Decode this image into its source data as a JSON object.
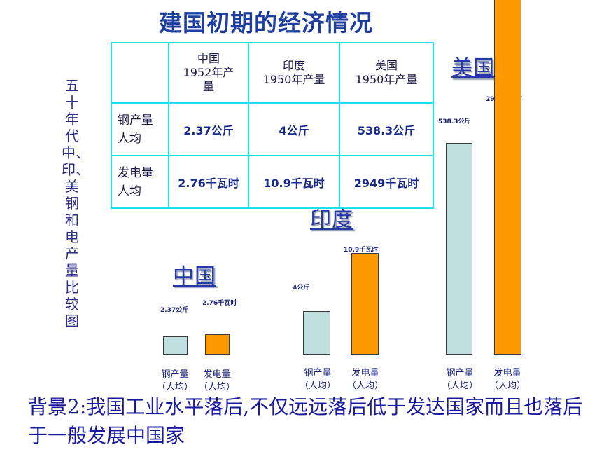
{
  "title": "建国初期的经济情况",
  "vertical_title": "五十年代中、印、美钢和电产量比较图",
  "table": {
    "headers": [
      "",
      "中国\n1952年产\n量",
      "印度\n1950年产量",
      "美国\n1950年产量"
    ],
    "rows": [
      {
        "label": "钢产量\n人均",
        "cells": [
          "2.37公斤",
          "4公斤",
          "538.3公斤"
        ]
      },
      {
        "label": "发电量\n人均",
        "cells": [
          "2.76千瓦时",
          "10.9千瓦时",
          "2949千瓦时"
        ]
      }
    ]
  },
  "chart_data": [
    {
      "type": "bar",
      "title": "中国",
      "categories": [
        "钢产量（人均）",
        "发电量（人均）"
      ],
      "values": [
        2.37,
        2.76
      ],
      "value_labels": [
        "2.37公斤",
        "2.76千瓦时"
      ],
      "colors": [
        "#bfdfe0",
        "#ff9900"
      ]
    },
    {
      "type": "bar",
      "title": "印度",
      "categories": [
        "钢产量（人均）",
        "发电量（人均）"
      ],
      "values": [
        4,
        10.9
      ],
      "value_labels": [
        "4公斤",
        "10.9千瓦时"
      ],
      "colors": [
        "#bfdfe0",
        "#ff9900"
      ]
    },
    {
      "type": "bar",
      "title": "美国",
      "categories": [
        "钢产量（人均）",
        "发电量（人均）"
      ],
      "values": [
        538.3,
        2949
      ],
      "value_labels": [
        "538.3公斤",
        "2949千瓦时"
      ],
      "colors": [
        "#bfdfe0",
        "#ff9900"
      ]
    }
  ],
  "axis_labels": {
    "steel": "钢产量\n（人均）",
    "power": "发电量\n（人均）"
  },
  "bottom_text": "背景2:我国工业水平落后,不仅远远落后低于发达国家而且也落后于一般发展中国家"
}
